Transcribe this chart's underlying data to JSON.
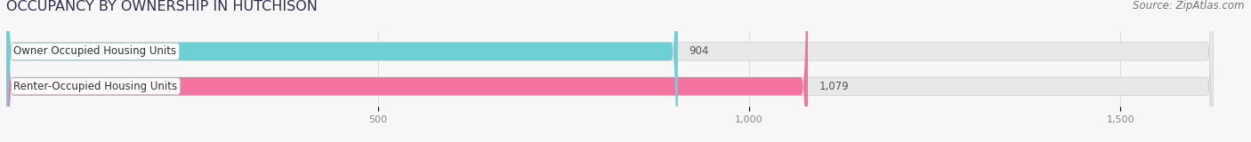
{
  "title": "OCCUPANCY BY OWNERSHIP IN HUTCHISON",
  "source": "Source: ZipAtlas.com",
  "categories": [
    "Renter-Occupied Housing Units",
    "Owner Occupied Housing Units"
  ],
  "values": [
    1079,
    904
  ],
  "bar_colors": [
    "#f472a0",
    "#6ecfd4"
  ],
  "xlim": [
    0,
    1625
  ],
  "xticks": [
    500,
    1000,
    1500
  ],
  "xtick_labels": [
    "500",
    "1,000",
    "1,500"
  ],
  "title_fontsize": 11.5,
  "source_fontsize": 8.5,
  "label_fontsize": 8.5,
  "value_fontsize": 8.5,
  "bar_height": 0.52,
  "background_color": "#f7f7f7",
  "bar_bg_color": "#e8e8e8",
  "label_box_color": "#ffffff",
  "value_color": "#555555",
  "title_color": "#2e2e4e",
  "source_color": "#777777",
  "grid_color": "#dddddd"
}
